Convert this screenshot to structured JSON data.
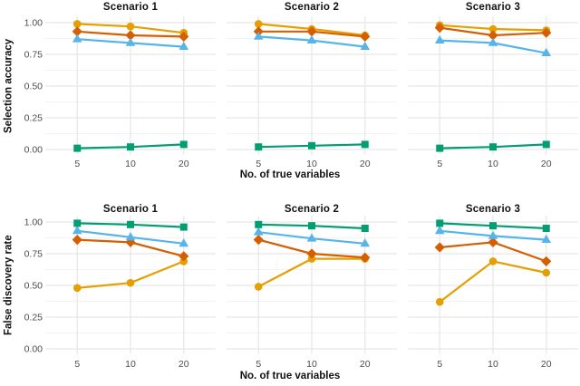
{
  "figure": {
    "background": "#ffffff",
    "title_text_color": "#111111",
    "tick_label_color": "#4d4d4d",
    "grid_major_color": "#e6e6e6",
    "grid_minor_color": "#f3f3f3"
  },
  "series_styles": [
    {
      "name": "orange-circle",
      "marker": "circle",
      "color": "#E69F00"
    },
    {
      "name": "vermillion-diamond",
      "marker": "diamond",
      "color": "#D55E00"
    },
    {
      "name": "skyblue-triangle",
      "marker": "triangle",
      "color": "#56B4E9"
    },
    {
      "name": "green-square",
      "marker": "square",
      "color": "#009E73"
    }
  ],
  "chart_data": [
    {
      "type": "line",
      "ylabel": "Selection accuracy",
      "xlabel": "No. of true variables",
      "x": [
        5,
        10,
        20
      ],
      "x_tick_labels": [
        "5",
        "10",
        "20"
      ],
      "y_tick_labels": [
        "0.00",
        "0.25",
        "0.50",
        "0.75",
        "1.00"
      ],
      "y_tick_values": [
        0,
        0.25,
        0.5,
        0.75,
        1
      ],
      "ylim": [
        0,
        1
      ],
      "grid": "major+minor horizontal, major vertical",
      "legend_position": "none",
      "panels": [
        {
          "title": "Scenario 1",
          "series": [
            {
              "name": "orange-circle",
              "values": [
                0.99,
                0.97,
                0.92
              ]
            },
            {
              "name": "vermillion-diamond",
              "values": [
                0.93,
                0.9,
                0.89
              ]
            },
            {
              "name": "skyblue-triangle",
              "values": [
                0.87,
                0.84,
                0.81
              ]
            },
            {
              "name": "green-square",
              "values": [
                0.01,
                0.02,
                0.04
              ]
            }
          ]
        },
        {
          "title": "Scenario 2",
          "series": [
            {
              "name": "orange-circle",
              "values": [
                0.99,
                0.95,
                0.9
              ]
            },
            {
              "name": "vermillion-diamond",
              "values": [
                0.93,
                0.93,
                0.89
              ]
            },
            {
              "name": "skyblue-triangle",
              "values": [
                0.89,
                0.86,
                0.81
              ]
            },
            {
              "name": "green-square",
              "values": [
                0.02,
                0.03,
                0.04
              ]
            }
          ]
        },
        {
          "title": "Scenario 3",
          "series": [
            {
              "name": "orange-circle",
              "values": [
                0.98,
                0.95,
                0.94
              ]
            },
            {
              "name": "vermillion-diamond",
              "values": [
                0.96,
                0.9,
                0.92
              ]
            },
            {
              "name": "skyblue-triangle",
              "values": [
                0.86,
                0.84,
                0.76
              ]
            },
            {
              "name": "green-square",
              "values": [
                0.01,
                0.02,
                0.04
              ]
            }
          ]
        }
      ]
    },
    {
      "type": "line",
      "ylabel": "False discovery rate",
      "xlabel": "No. of true variables",
      "x": [
        5,
        10,
        20
      ],
      "x_tick_labels": [
        "5",
        "10",
        "20"
      ],
      "y_tick_labels": [
        "0.00",
        "0.25",
        "0.50",
        "0.75",
        "1.00"
      ],
      "y_tick_values": [
        0,
        0.25,
        0.5,
        0.75,
        1
      ],
      "ylim": [
        0,
        1
      ],
      "grid": "major+minor horizontal, major vertical",
      "legend_position": "none",
      "panels": [
        {
          "title": "Scenario 1",
          "series": [
            {
              "name": "orange-circle",
              "values": [
                0.48,
                0.52,
                0.69
              ]
            },
            {
              "name": "vermillion-diamond",
              "values": [
                0.86,
                0.84,
                0.73
              ]
            },
            {
              "name": "skyblue-triangle",
              "values": [
                0.93,
                0.88,
                0.83
              ]
            },
            {
              "name": "green-square",
              "values": [
                0.99,
                0.98,
                0.96
              ]
            }
          ]
        },
        {
          "title": "Scenario 2",
          "series": [
            {
              "name": "orange-circle",
              "values": [
                0.49,
                0.71,
                0.71
              ]
            },
            {
              "name": "vermillion-diamond",
              "values": [
                0.86,
                0.75,
                0.72
              ]
            },
            {
              "name": "skyblue-triangle",
              "values": [
                0.92,
                0.87,
                0.83
              ]
            },
            {
              "name": "green-square",
              "values": [
                0.98,
                0.97,
                0.95
              ]
            }
          ]
        },
        {
          "title": "Scenario 3",
          "series": [
            {
              "name": "orange-circle",
              "values": [
                0.37,
                0.69,
                0.6
              ]
            },
            {
              "name": "vermillion-diamond",
              "values": [
                0.8,
                0.84,
                0.69
              ]
            },
            {
              "name": "skyblue-triangle",
              "values": [
                0.93,
                0.89,
                0.86
              ]
            },
            {
              "name": "green-square",
              "values": [
                0.99,
                0.97,
                0.95
              ]
            }
          ]
        }
      ]
    }
  ]
}
